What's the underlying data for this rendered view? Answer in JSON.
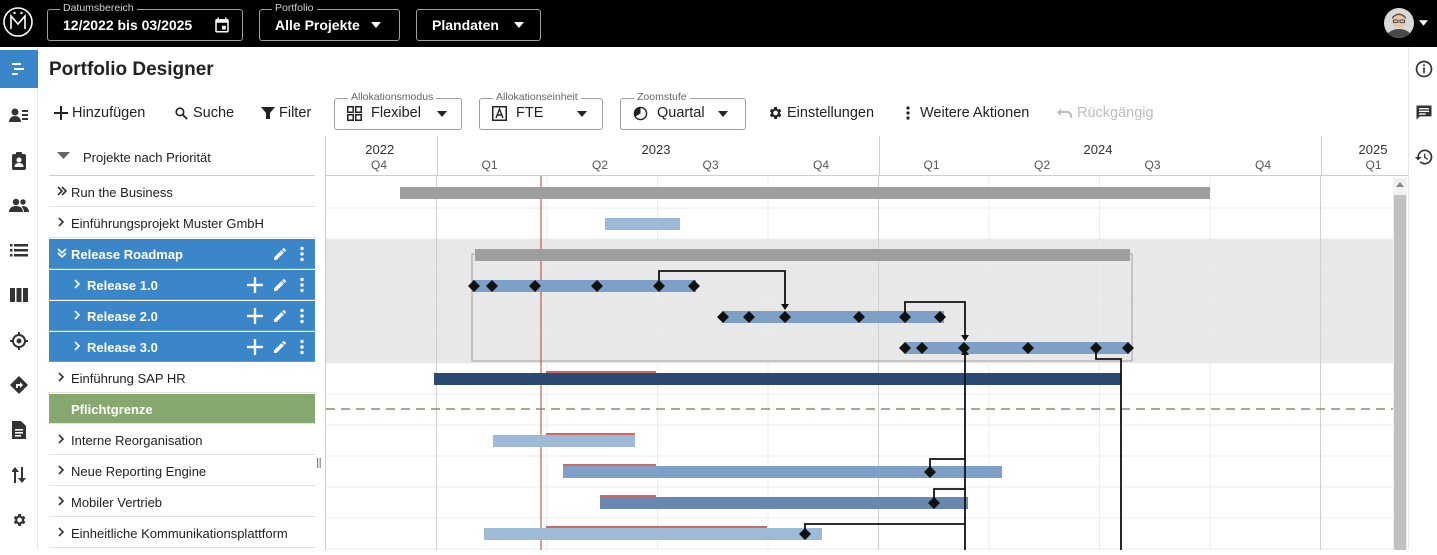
{
  "topbar": {
    "date_range": {
      "label": "Datumsbereich",
      "value": "12/2022 bis 03/2025"
    },
    "portfolio": {
      "label": "Portfolio",
      "value": "Alle Projekte"
    },
    "data_mode": {
      "value": "Plandaten"
    }
  },
  "page": {
    "title": "Portfolio Designer"
  },
  "toolbar": {
    "add": "Hinzufügen",
    "search": "Suche",
    "filter": "Filter",
    "allocation_mode": {
      "label": "Allokationsmodus",
      "value": "Flexibel"
    },
    "allocation_unit": {
      "label": "Allokationseinheit",
      "value": "FTE"
    },
    "zoom": {
      "label": "Zoomstufe",
      "value": "Quartal"
    },
    "settings": "Einstellungen",
    "more": "Weitere Aktionen",
    "undo": "Rückgängig"
  },
  "list": {
    "group_header": "Projekte nach Priorität",
    "rows": [
      {
        "name": "Run the Business"
      },
      {
        "name": "Einführungsprojekt Muster GmbH"
      },
      {
        "name": "Release Roadmap"
      },
      {
        "name": "Release 1.0"
      },
      {
        "name": "Release 2.0"
      },
      {
        "name": "Release 3.0"
      },
      {
        "name": "Einführung SAP HR"
      },
      {
        "name": "Pflichtgrenze"
      },
      {
        "name": "Interne Reorganisation"
      },
      {
        "name": "Neue Reporting Engine"
      },
      {
        "name": "Mobiler Vertrieb"
      },
      {
        "name": "Einheitliche Kommunikationsplattform"
      }
    ]
  },
  "timeline": {
    "years": [
      {
        "label": "2022",
        "quarters": [
          "Q4"
        ]
      },
      {
        "label": "2023",
        "quarters": [
          "Q1",
          "Q2",
          "Q3",
          "Q4"
        ]
      },
      {
        "label": "2024",
        "quarters": [
          "Q1",
          "Q2",
          "Q3",
          "Q4"
        ]
      },
      {
        "label": "2025",
        "quarters": [
          "Q1"
        ]
      }
    ]
  },
  "colors": {
    "selected": "#3a86c8",
    "mandatory": "#86a86e",
    "bar_gray": "#9e9e9e",
    "bar_light": "#9dbad9",
    "bar_medium": "#7ea0c6",
    "bar_dark": "#2b4a72",
    "today": "#c0392b"
  }
}
